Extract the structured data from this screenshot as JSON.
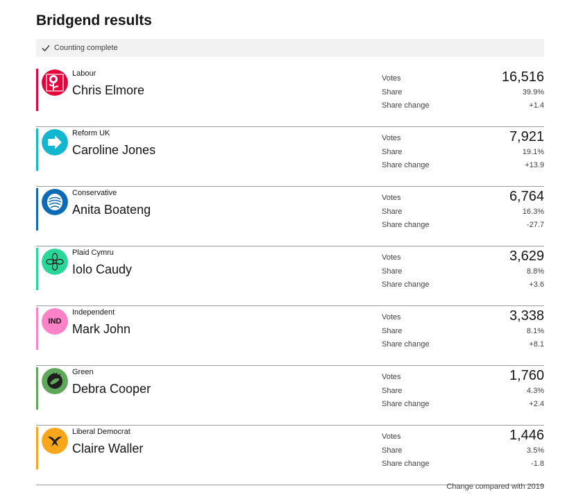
{
  "page": {
    "title": "Bridgend results",
    "status": "Counting complete",
    "footer": "Change compared with 2019"
  },
  "labels": {
    "votes": "Votes",
    "share": "Share",
    "share_change": "Share change"
  },
  "candidates": [
    {
      "party": "Labour",
      "name": "Chris Elmore",
      "votes": "16,516",
      "share": "39.9%",
      "change": "+1.4",
      "color": "#e4003b",
      "icon": "labour-rose-icon"
    },
    {
      "party": "Reform UK",
      "name": "Caroline Jones",
      "votes": "7,921",
      "share": "19.1%",
      "change": "+13.9",
      "color": "#12b6cf",
      "icon": "reform-arrow-icon"
    },
    {
      "party": "Conservative",
      "name": "Anita Boateng",
      "votes": "6,764",
      "share": "16.3%",
      "change": "-27.7",
      "color": "#0a6ab3",
      "icon": "conservative-tree-icon"
    },
    {
      "party": "Plaid Cymru",
      "name": "Iolo Caudy",
      "votes": "3,629",
      "share": "8.8%",
      "change": "+3.6",
      "color": "#2ad79a",
      "icon": "plaid-cymru-icon"
    },
    {
      "party": "Independent",
      "name": "Mark John",
      "votes": "3,338",
      "share": "8.1%",
      "change": "+8.1",
      "color": "#f983c6",
      "icon": "independent-badge-icon",
      "badge": "IND"
    },
    {
      "party": "Green",
      "name": "Debra Cooper",
      "votes": "1,760",
      "share": "4.3%",
      "change": "+2.4",
      "color": "#5fa85b",
      "icon": "green-party-icon"
    },
    {
      "party": "Liberal Democrat",
      "name": "Claire Waller",
      "votes": "1,446",
      "share": "3.5%",
      "change": "-1.8",
      "color": "#faa61a",
      "icon": "libdem-bird-icon"
    }
  ]
}
